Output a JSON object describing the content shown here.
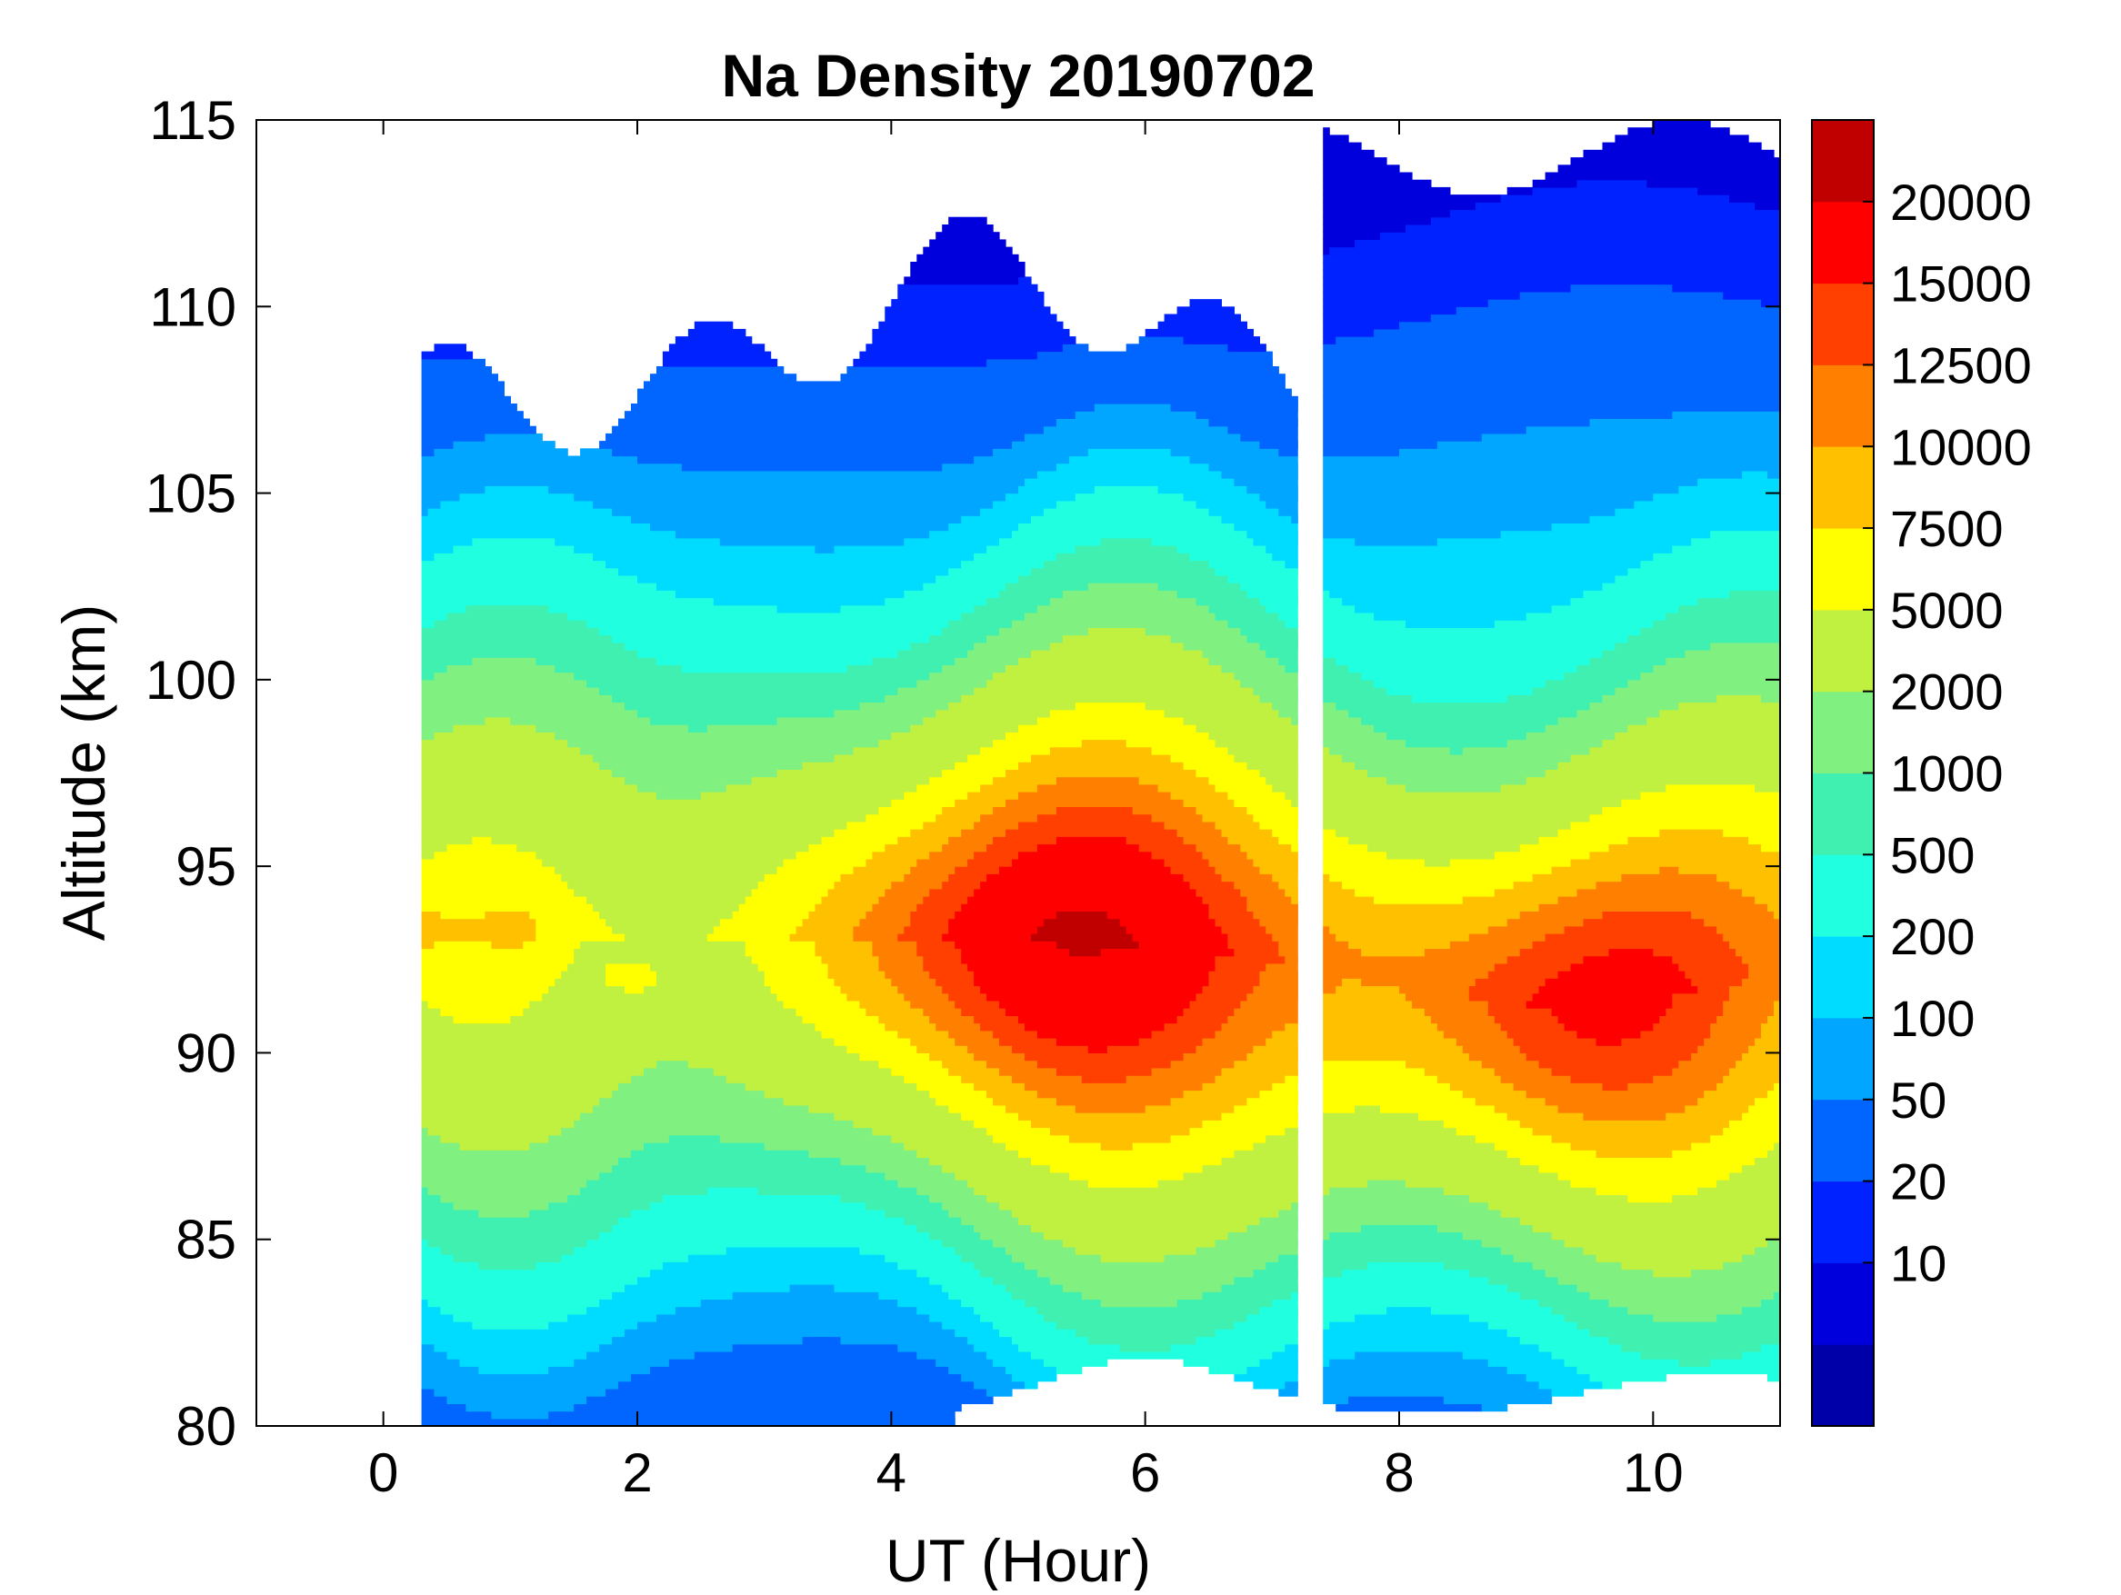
{
  "chart_data": {
    "type": "heatmap",
    "subtype": "filled-contour",
    "title": "Na Density 20190702",
    "xlabel": "UT (Hour)",
    "ylabel": "Altitude (km)",
    "xlim": [
      -1,
      11
    ],
    "ylim": [
      80,
      115
    ],
    "xticks": [
      0,
      2,
      4,
      6,
      8,
      10
    ],
    "xtick_labels": [
      "0",
      "2",
      "4",
      "6",
      "8",
      "10"
    ],
    "yticks": [
      80,
      85,
      90,
      95,
      100,
      105,
      110,
      115
    ],
    "ytick_labels": [
      "80",
      "85",
      "90",
      "95",
      "100",
      "105",
      "110",
      "115"
    ],
    "colorbar": {
      "tick_labels": [
        "20000",
        "15000",
        "12500",
        "10000",
        "7500",
        "5000",
        "2000",
        "1000",
        "500",
        "200",
        "100",
        "50",
        "20",
        "10"
      ],
      "levels_low_to_high": [
        0,
        10,
        20,
        50,
        100,
        200,
        500,
        1000,
        2000,
        5000,
        7500,
        10000,
        12500,
        15000,
        20000
      ],
      "colors_low_to_high": [
        "#0000a8",
        "#0000dc",
        "#0022ff",
        "#0066ff",
        "#00a6ff",
        "#00dcff",
        "#20ffe0",
        "#40f0b0",
        "#80f080",
        "#c0f040",
        "#ffff00",
        "#ffc000",
        "#ff8000",
        "#ff4000",
        "#ff0000",
        "#c00000"
      ]
    },
    "data_gap": {
      "ut_start": 7.2,
      "ut_end": 7.4
    },
    "observation_start_ut": 0.3,
    "observation_end_ut": 11.0,
    "layer_peak": {
      "altitude_km": 93,
      "ut": 5.3,
      "max_density": 20000
    }
  }
}
